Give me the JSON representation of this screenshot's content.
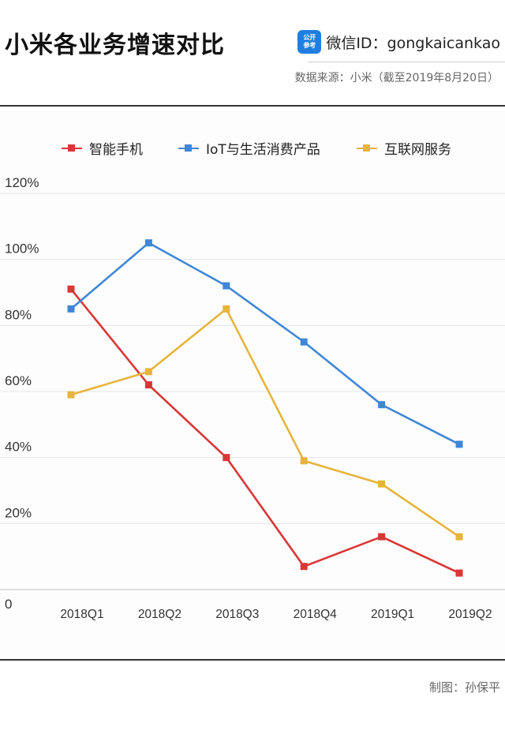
{
  "header": {
    "title": "小米各业务增速对比",
    "wechat_logo_line1": "公开",
    "wechat_logo_line2": "参考",
    "wechat_id": "微信ID：gongkaicankao",
    "source": "数据来源：小米（截至2019年8月20日）"
  },
  "footer": {
    "credit": "制图：孙保平"
  },
  "chart_data": {
    "type": "line",
    "categories": [
      "2018Q1",
      "2018Q2",
      "2018Q3",
      "2018Q4",
      "2019Q1",
      "2019Q2"
    ],
    "y_tick_labels": [
      "0",
      "20%",
      "40%",
      "60%",
      "80%",
      "100%",
      "120%"
    ],
    "y_ticks": [
      0,
      20,
      40,
      60,
      80,
      100,
      120
    ],
    "ylim": [
      0,
      120
    ],
    "grid": "horizontal",
    "legend_position": "top",
    "series": [
      {
        "name": "智能手机",
        "color": "#d93636",
        "values": [
          91,
          62,
          40,
          7,
          16,
          5
        ]
      },
      {
        "name": "IoT与生活消费产品",
        "color": "#3f87d6",
        "values": [
          85,
          105,
          92,
          75,
          56,
          44
        ]
      },
      {
        "name": "互联网服务",
        "color": "#e6b43c",
        "values": [
          59,
          66,
          85,
          39,
          32,
          16
        ]
      }
    ]
  }
}
